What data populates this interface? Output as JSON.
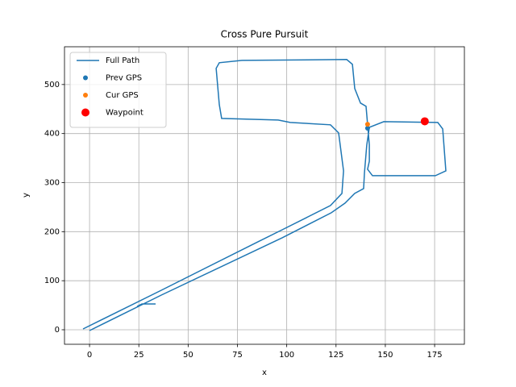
{
  "chart_data": {
    "type": "line",
    "title": "Cross Pure Pursuit",
    "x_label": "x",
    "y_label": "y",
    "xlim": [
      -12.7,
      190.1
    ],
    "ylim": [
      -29.6,
      577
    ],
    "xticks": [
      0,
      25,
      50,
      75,
      100,
      125,
      150,
      175
    ],
    "yticks": [
      0,
      100,
      200,
      300,
      400,
      500
    ],
    "grid": true,
    "legend": "upper-left",
    "series": [
      {
        "name": "Full Path",
        "type": "line",
        "color": "#1f77b4",
        "x": [
          -3.3,
          36.4,
          85.4,
          97.7,
          110.0,
          122.2,
          128.0,
          128.8,
          126.3,
          122.2,
          101.8,
          95.7,
          67.0,
          65.8,
          64.2,
          65.8,
          77.3,
          130.4,
          133.3,
          134.5,
          137.4,
          140.2,
          141.9,
          141.9,
          141.0,
          143.5,
          175.4,
          180.7,
          179.1,
          176.6,
          149.2,
          141.9,
          140.6,
          139.4,
          139.0,
          134.5,
          129.6,
          122.6,
          97.7,
          36.4,
          0,
          null,
          24.1,
          26.6,
          33.5
        ],
        "values": [
          1.6,
          80.6,
          179.3,
          203.9,
          228.6,
          253.3,
          278.0,
          324.0,
          401.3,
          417.8,
          422.7,
          427.6,
          430.9,
          458.9,
          532.9,
          544.4,
          549.3,
          551.0,
          541.1,
          491.8,
          462.2,
          455.6,
          376.6,
          343.8,
          327.3,
          314.1,
          314.1,
          324.0,
          409.5,
          422.7,
          424.3,
          412.8,
          376.6,
          319.1,
          287.8,
          278.0,
          258.2,
          238.5,
          187.5,
          70.7,
          -1.6,
          null,
          47.7,
          52.6,
          52.6
        ]
      },
      {
        "name": "Prev GPS",
        "type": "scatter",
        "color": "#1f77b4",
        "size": 6,
        "x": [
          141
        ],
        "values": [
          411
        ]
      },
      {
        "name": "Cur GPS",
        "type": "scatter",
        "color": "#ff7f0e",
        "size": 6,
        "x": [
          141
        ],
        "values": [
          419
        ]
      },
      {
        "name": "Waypoint",
        "type": "scatter",
        "color": "#ff0000",
        "size": 10,
        "x": [
          170
        ],
        "values": [
          425
        ]
      }
    ]
  }
}
